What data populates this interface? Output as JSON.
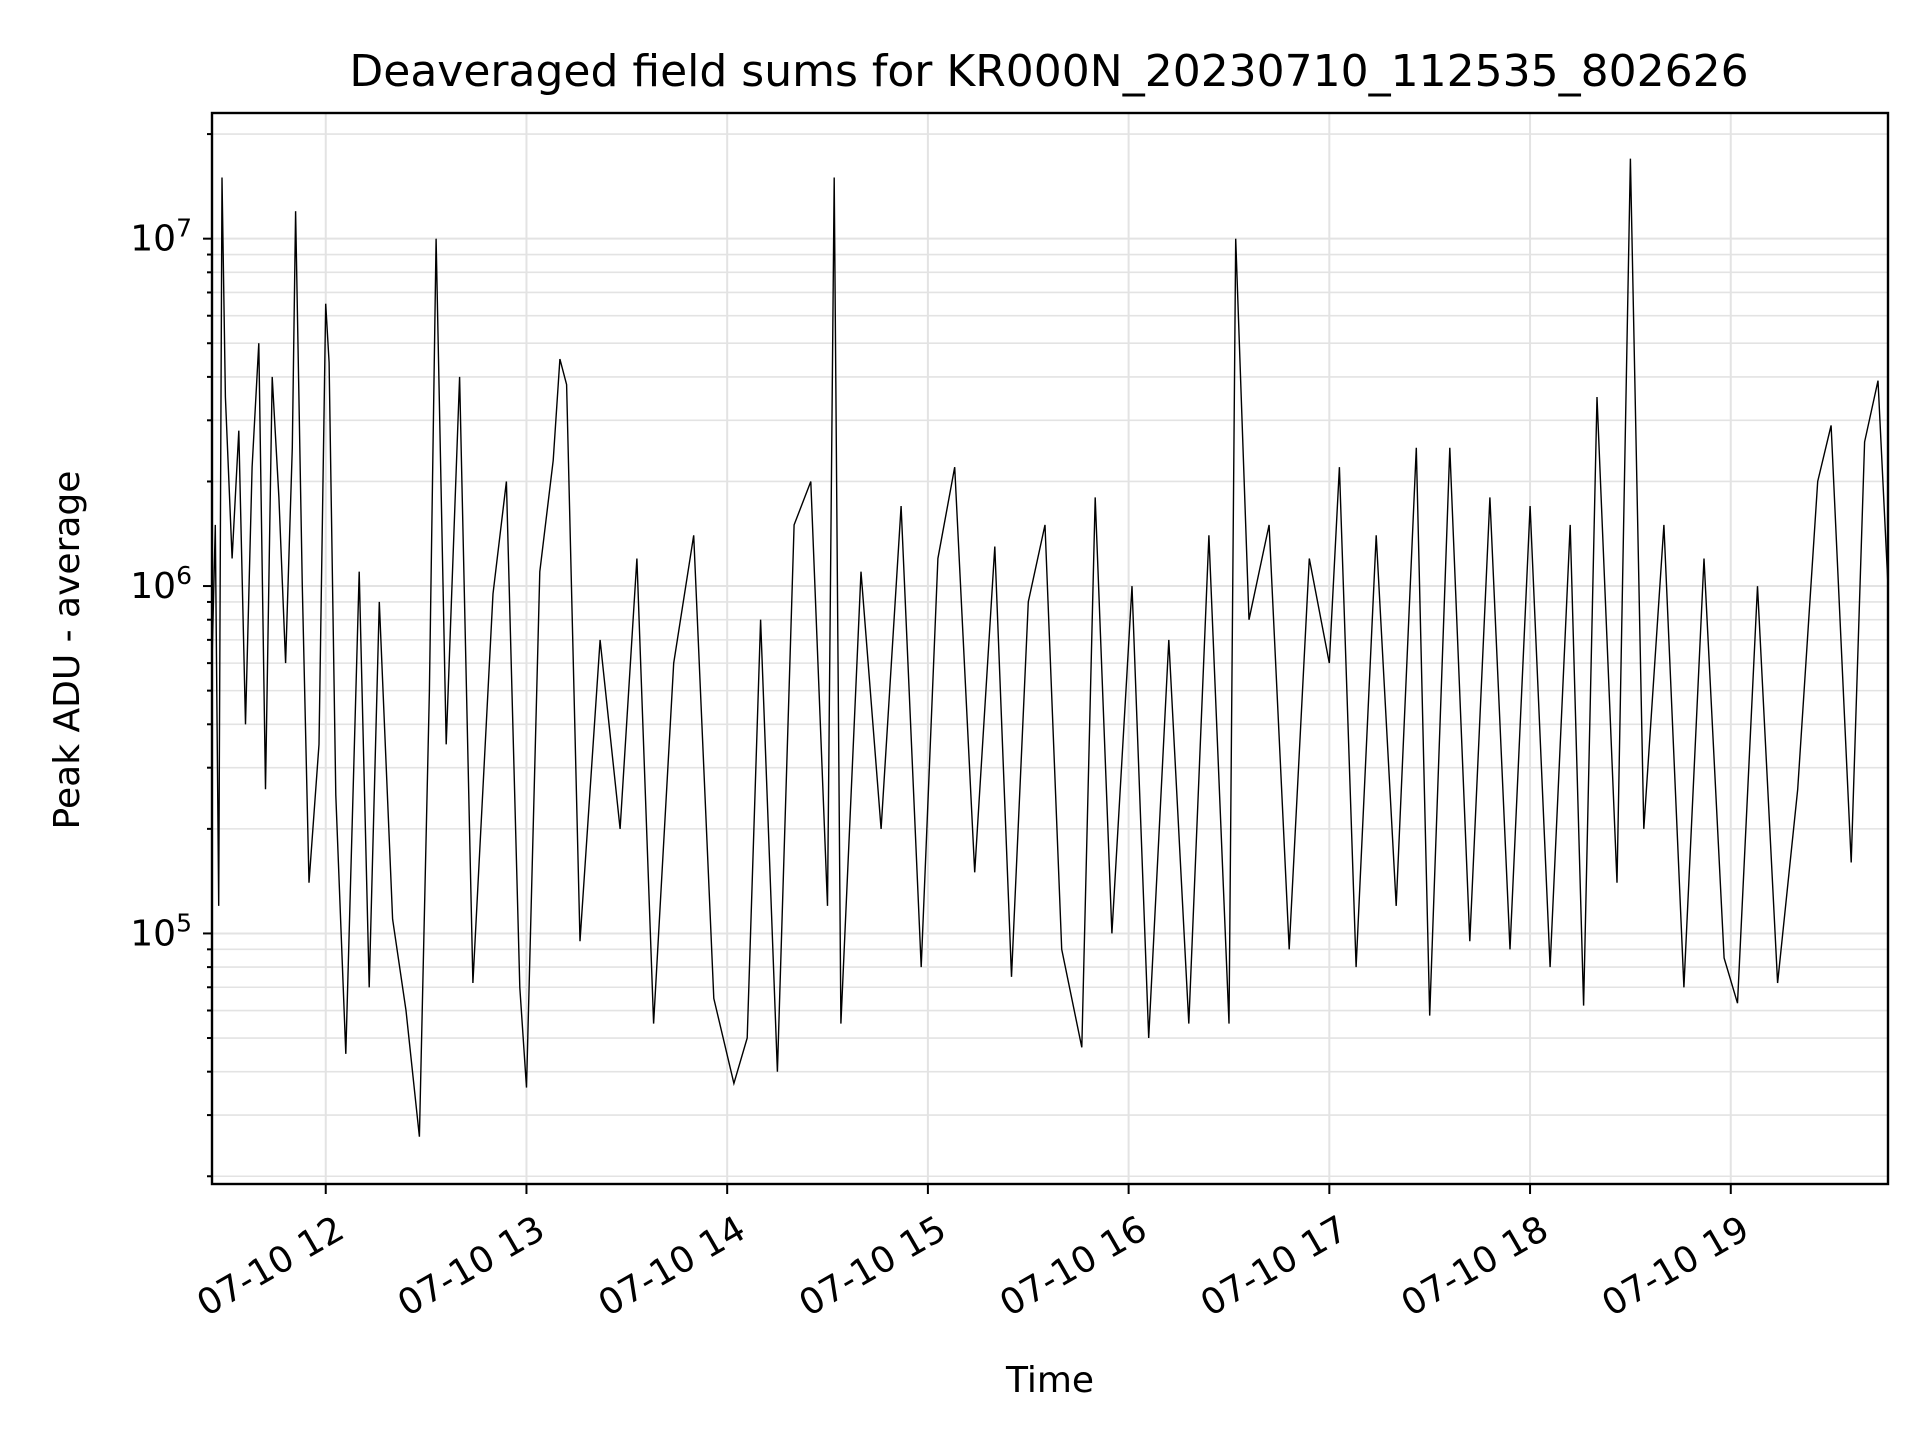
{
  "chart_data": {
    "type": "line",
    "title": "Deaveraged field sums for KR000N_20230710_112535_802626",
    "xlabel": "Time",
    "ylabel": "Peak ADU - average",
    "x_ticks": [
      "07-10 12",
      "07-10 13",
      "07-10 14",
      "07-10 15",
      "07-10 16",
      "07-10 17",
      "07-10 18",
      "07-10 19"
    ],
    "y_ticks": [
      {
        "base": "10",
        "exp": "5",
        "value": 100000
      },
      {
        "base": "10",
        "exp": "6",
        "value": 1000000
      },
      {
        "base": "10",
        "exp": "7",
        "value": 10000000
      }
    ],
    "y_scale": "log",
    "ylim": [
      19000,
      23000000
    ],
    "xlim": [
      "2023-07-10 11:26",
      "2023-07-10 19:47"
    ],
    "grid": true,
    "line_color": "#000000",
    "series": [
      {
        "points": [
          [
            "2023-07-10 11:26",
            600000
          ],
          [
            "2023-07-10 11:27",
            1500000
          ],
          [
            "2023-07-10 11:28",
            120000
          ],
          [
            "2023-07-10 11:29",
            15000000
          ],
          [
            "2023-07-10 11:30",
            3500000
          ],
          [
            "2023-07-10 11:32",
            1200000
          ],
          [
            "2023-07-10 11:34",
            2800000
          ],
          [
            "2023-07-10 11:36",
            400000
          ],
          [
            "2023-07-10 11:38",
            2200000
          ],
          [
            "2023-07-10 11:40",
            5000000
          ],
          [
            "2023-07-10 11:42",
            260000
          ],
          [
            "2023-07-10 11:44",
            4000000
          ],
          [
            "2023-07-10 11:46",
            1800000
          ],
          [
            "2023-07-10 11:48",
            600000
          ],
          [
            "2023-07-10 11:50",
            2500000
          ],
          [
            "2023-07-10 11:51",
            12000000
          ],
          [
            "2023-07-10 11:53",
            1000000
          ],
          [
            "2023-07-10 11:55",
            140000
          ],
          [
            "2023-07-10 11:58",
            350000
          ],
          [
            "2023-07-10 12:00",
            6500000
          ],
          [
            "2023-07-10 12:01",
            4400000
          ],
          [
            "2023-07-10 12:03",
            250000
          ],
          [
            "2023-07-10 12:06",
            45000
          ],
          [
            "2023-07-10 12:10",
            1100000
          ],
          [
            "2023-07-10 12:13",
            70000
          ],
          [
            "2023-07-10 12:16",
            900000
          ],
          [
            "2023-07-10 12:20",
            110000
          ],
          [
            "2023-07-10 12:24",
            60000
          ],
          [
            "2023-07-10 12:28",
            26000
          ],
          [
            "2023-07-10 12:31",
            500000
          ],
          [
            "2023-07-10 12:33",
            10000000
          ],
          [
            "2023-07-10 12:36",
            350000
          ],
          [
            "2023-07-10 12:40",
            4000000
          ],
          [
            "2023-07-10 12:44",
            72000
          ],
          [
            "2023-07-10 12:50",
            950000
          ],
          [
            "2023-07-10 12:54",
            2000000
          ],
          [
            "2023-07-10 12:58",
            70000
          ],
          [
            "2023-07-10 13:00",
            36000
          ],
          [
            "2023-07-10 13:04",
            1100000
          ],
          [
            "2023-07-10 13:08",
            2300000
          ],
          [
            "2023-07-10 13:10",
            4500000
          ],
          [
            "2023-07-10 13:12",
            3800000
          ],
          [
            "2023-07-10 13:16",
            95000
          ],
          [
            "2023-07-10 13:22",
            700000
          ],
          [
            "2023-07-10 13:28",
            200000
          ],
          [
            "2023-07-10 13:33",
            1200000
          ],
          [
            "2023-07-10 13:38",
            55000
          ],
          [
            "2023-07-10 13:44",
            600000
          ],
          [
            "2023-07-10 13:50",
            1400000
          ],
          [
            "2023-07-10 13:56",
            65000
          ],
          [
            "2023-07-10 14:02",
            37000
          ],
          [
            "2023-07-10 14:06",
            50000
          ],
          [
            "2023-07-10 14:10",
            800000
          ],
          [
            "2023-07-10 14:15",
            40000
          ],
          [
            "2023-07-10 14:20",
            1500000
          ],
          [
            "2023-07-10 14:25",
            2000000
          ],
          [
            "2023-07-10 14:30",
            120000
          ],
          [
            "2023-07-10 14:32",
            15000000
          ],
          [
            "2023-07-10 14:34",
            55000
          ],
          [
            "2023-07-10 14:40",
            1100000
          ],
          [
            "2023-07-10 14:46",
            200000
          ],
          [
            "2023-07-10 14:52",
            1700000
          ],
          [
            "2023-07-10 14:58",
            80000
          ],
          [
            "2023-07-10 15:03",
            1200000
          ],
          [
            "2023-07-10 15:08",
            2200000
          ],
          [
            "2023-07-10 15:14",
            150000
          ],
          [
            "2023-07-10 15:20",
            1300000
          ],
          [
            "2023-07-10 15:25",
            75000
          ],
          [
            "2023-07-10 15:30",
            900000
          ],
          [
            "2023-07-10 15:35",
            1500000
          ],
          [
            "2023-07-10 15:40",
            90000
          ],
          [
            "2023-07-10 15:46",
            47000
          ],
          [
            "2023-07-10 15:50",
            1800000
          ],
          [
            "2023-07-10 15:55",
            100000
          ],
          [
            "2023-07-10 16:01",
            1000000
          ],
          [
            "2023-07-10 16:06",
            50000
          ],
          [
            "2023-07-10 16:12",
            700000
          ],
          [
            "2023-07-10 16:18",
            55000
          ],
          [
            "2023-07-10 16:24",
            1400000
          ],
          [
            "2023-07-10 16:30",
            55000
          ],
          [
            "2023-07-10 16:32",
            10000000
          ],
          [
            "2023-07-10 16:36",
            800000
          ],
          [
            "2023-07-10 16:42",
            1500000
          ],
          [
            "2023-07-10 16:48",
            90000
          ],
          [
            "2023-07-10 16:54",
            1200000
          ],
          [
            "2023-07-10 17:00",
            600000
          ],
          [
            "2023-07-10 17:03",
            2200000
          ],
          [
            "2023-07-10 17:08",
            80000
          ],
          [
            "2023-07-10 17:14",
            1400000
          ],
          [
            "2023-07-10 17:20",
            120000
          ],
          [
            "2023-07-10 17:26",
            2500000
          ],
          [
            "2023-07-10 17:30",
            58000
          ],
          [
            "2023-07-10 17:36",
            2500000
          ],
          [
            "2023-07-10 17:42",
            95000
          ],
          [
            "2023-07-10 17:48",
            1800000
          ],
          [
            "2023-07-10 17:54",
            90000
          ],
          [
            "2023-07-10 18:00",
            1700000
          ],
          [
            "2023-07-10 18:06",
            80000
          ],
          [
            "2023-07-10 18:12",
            1500000
          ],
          [
            "2023-07-10 18:16",
            62000
          ],
          [
            "2023-07-10 18:20",
            3500000
          ],
          [
            "2023-07-10 18:26",
            140000
          ],
          [
            "2023-07-10 18:30",
            17000000
          ],
          [
            "2023-07-10 18:34",
            200000
          ],
          [
            "2023-07-10 18:40",
            1500000
          ],
          [
            "2023-07-10 18:46",
            70000
          ],
          [
            "2023-07-10 18:52",
            1200000
          ],
          [
            "2023-07-10 18:58",
            85000
          ],
          [
            "2023-07-10 19:02",
            63000
          ],
          [
            "2023-07-10 19:08",
            1000000
          ],
          [
            "2023-07-10 19:14",
            72000
          ],
          [
            "2023-07-10 19:20",
            260000
          ],
          [
            "2023-07-10 19:26",
            2000000
          ],
          [
            "2023-07-10 19:30",
            2900000
          ],
          [
            "2023-07-10 19:36",
            160000
          ],
          [
            "2023-07-10 19:40",
            2600000
          ],
          [
            "2023-07-10 19:44",
            3900000
          ],
          [
            "2023-07-10 19:47",
            1000000
          ]
        ]
      }
    ]
  }
}
